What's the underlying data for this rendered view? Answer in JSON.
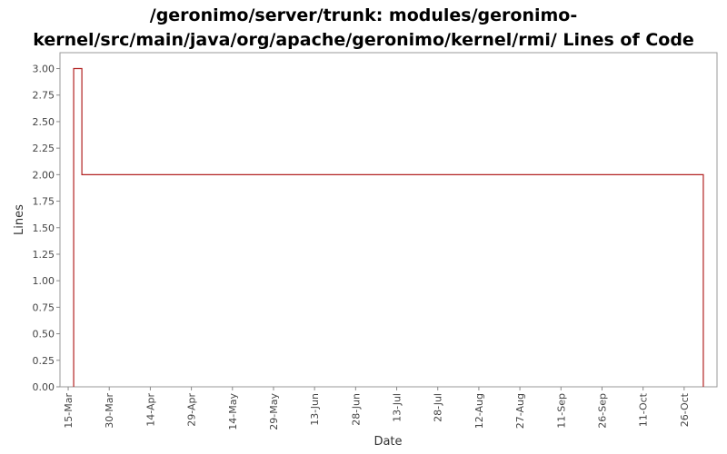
{
  "chart_data": {
    "type": "line",
    "step": true,
    "title": "/geronimo/server/trunk: modules/geronimo-kernel/src/main/java/org/apache/geronimo/kernel/rmi/ Lines of Code",
    "x_label": "Date",
    "y_label": "Lines",
    "x": [
      "17-Mar",
      "17-Mar",
      "20-Mar",
      "2-Nov"
    ],
    "series": [
      {
        "name": "Lines",
        "color": "#b22222",
        "values": [
          0,
          3,
          2,
          0
        ]
      }
    ],
    "xlim": [
      "12-Mar",
      "7-Nov"
    ],
    "xticks": [
      "15-Mar",
      "30-Mar",
      "14-Apr",
      "29-Apr",
      "14-May",
      "29-May",
      "13-Jun",
      "28-Jun",
      "13-Jul",
      "28-Jul",
      "12-Aug",
      "27-Aug",
      "11-Sep",
      "26-Sep",
      "11-Oct",
      "26-Oct"
    ],
    "ylim": [
      0,
      3.15
    ],
    "yticks": [
      {
        "value": 0,
        "label": "0.00"
      },
      {
        "value": 0.25,
        "label": "0.25"
      },
      {
        "value": 0.5,
        "label": "0.50"
      },
      {
        "value": 0.75,
        "label": "0.75"
      },
      {
        "value": 1,
        "label": "1.00"
      },
      {
        "value": 1.25,
        "label": "1.25"
      },
      {
        "value": 1.5,
        "label": "1.50"
      },
      {
        "value": 1.75,
        "label": "1.75"
      },
      {
        "value": 2,
        "label": "2.00"
      },
      {
        "value": 2.25,
        "label": "2.25"
      },
      {
        "value": 2.5,
        "label": "2.50"
      },
      {
        "value": 2.75,
        "label": "2.75"
      },
      {
        "value": 3,
        "label": "3.00"
      }
    ],
    "grid": false
  }
}
